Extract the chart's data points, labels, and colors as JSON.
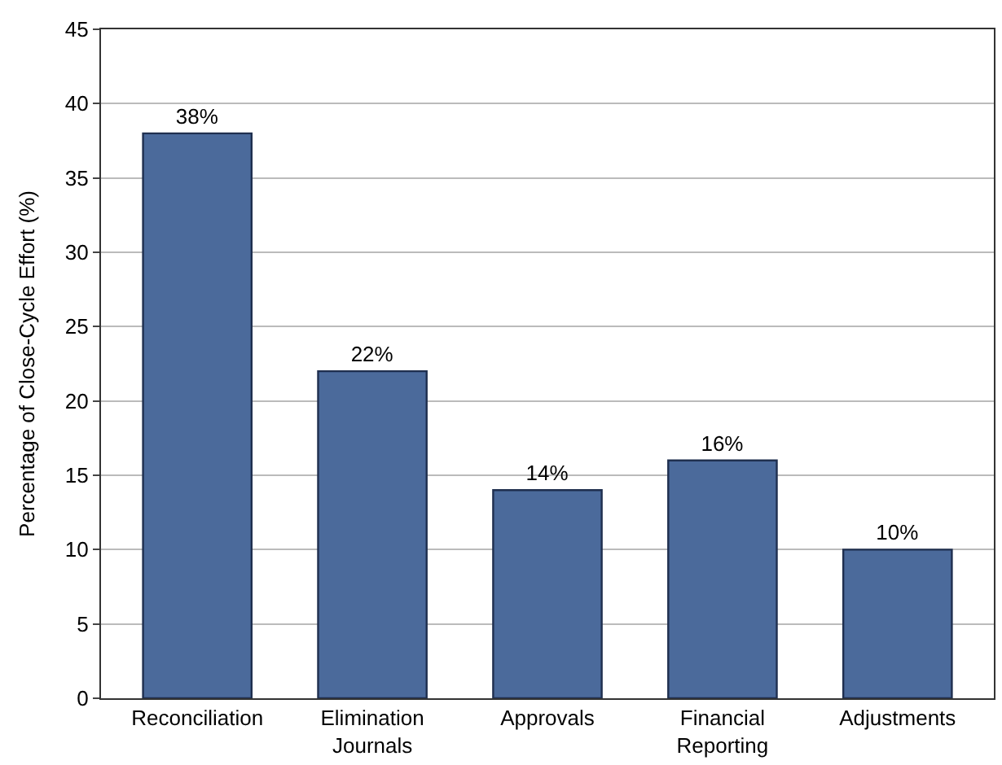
{
  "chart_data": {
    "type": "bar",
    "ylabel": "Percentage of Close-Cycle Effort (%)",
    "categories": [
      "Reconciliation",
      "Elimination Journals",
      "Approvals",
      "Financial Reporting",
      "Adjustments"
    ],
    "values": [
      38,
      22,
      14,
      16,
      10
    ],
    "value_labels": [
      "38%",
      "22%",
      "14%",
      "16%",
      "10%"
    ],
    "color": "#4b6a9b",
    "ylim": [
      0,
      45
    ],
    "yticks": [
      0,
      5,
      10,
      15,
      20,
      25,
      30,
      35,
      40,
      45
    ],
    "grid": "y",
    "legend": false
  }
}
